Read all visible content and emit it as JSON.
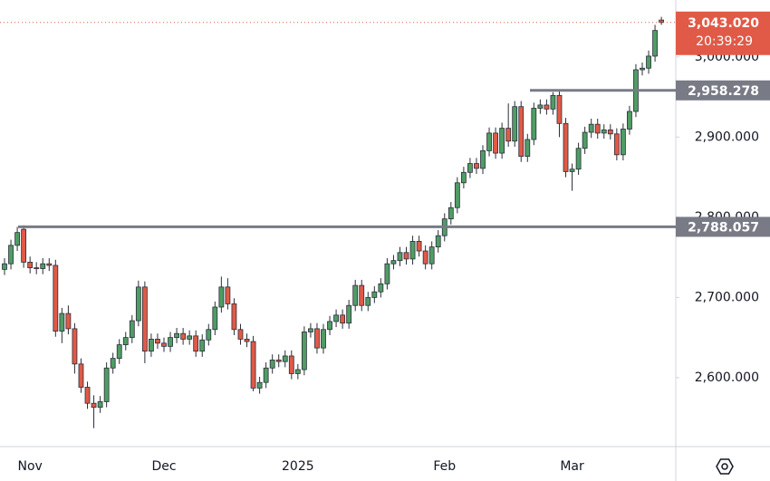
{
  "chart_data": {
    "type": "candlestick",
    "categories": [
      null,
      null,
      null,
      null,
      "Nov",
      null,
      null,
      null,
      null,
      null,
      null,
      null,
      null,
      null,
      null,
      null,
      null,
      null,
      null,
      null,
      null,
      null,
      null,
      null,
      null,
      "Dec",
      null,
      null,
      null,
      null,
      null,
      null,
      null,
      null,
      null,
      null,
      null,
      null,
      null,
      null,
      null,
      null,
      null,
      null,
      null,
      null,
      "2025",
      null,
      null,
      null,
      null,
      null,
      null,
      null,
      null,
      null,
      null,
      null,
      null,
      null,
      null,
      null,
      null,
      null,
      null,
      null,
      null,
      null,
      null,
      "Feb",
      null,
      null,
      null,
      null,
      null,
      null,
      null,
      null,
      null,
      null,
      null,
      null,
      null,
      null,
      null,
      null,
      null,
      null,
      null,
      "Mar",
      null,
      null,
      null,
      null,
      null,
      null,
      null,
      null,
      null,
      null,
      null,
      null,
      null,
      null
    ],
    "open": [
      2735,
      2742,
      2765,
      2785,
      2744,
      2737,
      2736,
      2742,
      2740,
      2658,
      2680,
      2661,
      2617,
      2588,
      2568,
      2563,
      2570,
      2612,
      2624,
      2641,
      2650,
      2671,
      2713,
      2633,
      2648,
      2643,
      2639,
      2650,
      2655,
      2648,
      2652,
      2633,
      2647,
      2660,
      2688,
      2713,
      2692,
      2660,
      2648,
      2645,
      2587,
      2594,
      2612,
      2622,
      2620,
      2627,
      2605,
      2610,
      2657,
      2661,
      2637,
      2660,
      2670,
      2678,
      2668,
      2690,
      2715,
      2690,
      2700,
      2707,
      2717,
      2742,
      2746,
      2756,
      2748,
      2770,
      2758,
      2742,
      2763,
      2777,
      2798,
      2812,
      2843,
      2856,
      2867,
      2861,
      2883,
      2905,
      2880,
      2911,
      2895,
      2938,
      2876,
      2897,
      2936,
      2940,
      2935,
      2952,
      2917,
      2857,
      2860,
      2886,
      2906,
      2916,
      2905,
      2909,
      2904,
      2878,
      2910,
      2932,
      2984,
      2986,
      3001,
      3046
    ],
    "high": [
      2749,
      2772,
      2788,
      2790,
      2751,
      2744,
      2749,
      2749,
      2747,
      2687,
      2690,
      2668,
      2624,
      2595,
      2578,
      2577,
      2619,
      2631,
      2648,
      2657,
      2678,
      2721,
      2720,
      2655,
      2655,
      2650,
      2657,
      2662,
      2662,
      2659,
      2659,
      2654,
      2667,
      2695,
      2726,
      2724,
      2699,
      2667,
      2655,
      2652,
      2601,
      2619,
      2629,
      2629,
      2634,
      2634,
      2617,
      2664,
      2668,
      2668,
      2667,
      2677,
      2685,
      2685,
      2697,
      2722,
      2722,
      2707,
      2714,
      2724,
      2749,
      2753,
      2763,
      2763,
      2777,
      2777,
      2765,
      2770,
      2784,
      2805,
      2819,
      2850,
      2863,
      2874,
      2874,
      2890,
      2912,
      2912,
      2918,
      2942,
      2945,
      2945,
      2904,
      2943,
      2947,
      2947,
      2956,
      2959,
      2924,
      2867,
      2893,
      2913,
      2923,
      2923,
      2916,
      2916,
      2911,
      2917,
      2939,
      2991,
      2993,
      3008,
      3040,
      3050
    ],
    "low": [
      2728,
      2735,
      2758,
      2737,
      2730,
      2729,
      2729,
      2733,
      2651,
      2643,
      2654,
      2605,
      2581,
      2561,
      2537,
      2556,
      2563,
      2605,
      2617,
      2634,
      2643,
      2664,
      2618,
      2626,
      2636,
      2632,
      2632,
      2643,
      2641,
      2641,
      2626,
      2626,
      2640,
      2653,
      2681,
      2685,
      2653,
      2641,
      2638,
      2583,
      2580,
      2587,
      2605,
      2613,
      2613,
      2598,
      2598,
      2603,
      2650,
      2630,
      2630,
      2653,
      2663,
      2661,
      2661,
      2683,
      2683,
      2683,
      2693,
      2700,
      2710,
      2735,
      2739,
      2741,
      2741,
      2751,
      2735,
      2735,
      2756,
      2770,
      2791,
      2805,
      2836,
      2849,
      2854,
      2854,
      2876,
      2873,
      2873,
      2888,
      2888,
      2869,
      2869,
      2890,
      2929,
      2928,
      2928,
      2900,
      2850,
      2833,
      2853,
      2879,
      2899,
      2898,
      2898,
      2897,
      2871,
      2871,
      2903,
      2925,
      2977,
      2979,
      2994,
      3040
    ],
    "close": [
      2742,
      2765,
      2781,
      2744,
      2737,
      2736,
      2742,
      2740,
      2658,
      2680,
      2661,
      2617,
      2588,
      2568,
      2563,
      2570,
      2612,
      2624,
      2641,
      2650,
      2671,
      2713,
      2633,
      2648,
      2643,
      2639,
      2650,
      2655,
      2648,
      2652,
      2633,
      2647,
      2660,
      2688,
      2713,
      2692,
      2660,
      2648,
      2645,
      2587,
      2594,
      2612,
      2622,
      2620,
      2627,
      2605,
      2610,
      2657,
      2661,
      2637,
      2660,
      2670,
      2678,
      2668,
      2690,
      2715,
      2690,
      2700,
      2707,
      2717,
      2742,
      2746,
      2756,
      2748,
      2770,
      2758,
      2742,
      2763,
      2777,
      2798,
      2812,
      2843,
      2856,
      2867,
      2861,
      2883,
      2905,
      2880,
      2911,
      2895,
      2938,
      2876,
      2897,
      2936,
      2940,
      2935,
      2952,
      2917,
      2857,
      2860,
      2886,
      2906,
      2916,
      2905,
      2909,
      2904,
      2878,
      2910,
      2932,
      2984,
      2986,
      3001,
      3033,
      3043.02
    ],
    "up_color": "#4f9d64",
    "down_color": "#e05a47",
    "ylim": [
      2514,
      3071
    ],
    "yticks": [
      {
        "value": 2600,
        "label": "2,600.000"
      },
      {
        "value": 2700,
        "label": "2,700.000"
      },
      {
        "value": 2800,
        "label": "2,800.000"
      },
      {
        "value": 2900,
        "label": "2,900.000"
      },
      {
        "value": 3000,
        "label": "3,000.000"
      }
    ],
    "levels": [
      {
        "value": 2958.278,
        "label": "2,958.278"
      },
      {
        "value": 2788.057,
        "label": "2,788.057"
      }
    ],
    "last_price": {
      "value": 3043.02,
      "label": "3,043.020"
    },
    "countdown": "20:39:29"
  }
}
